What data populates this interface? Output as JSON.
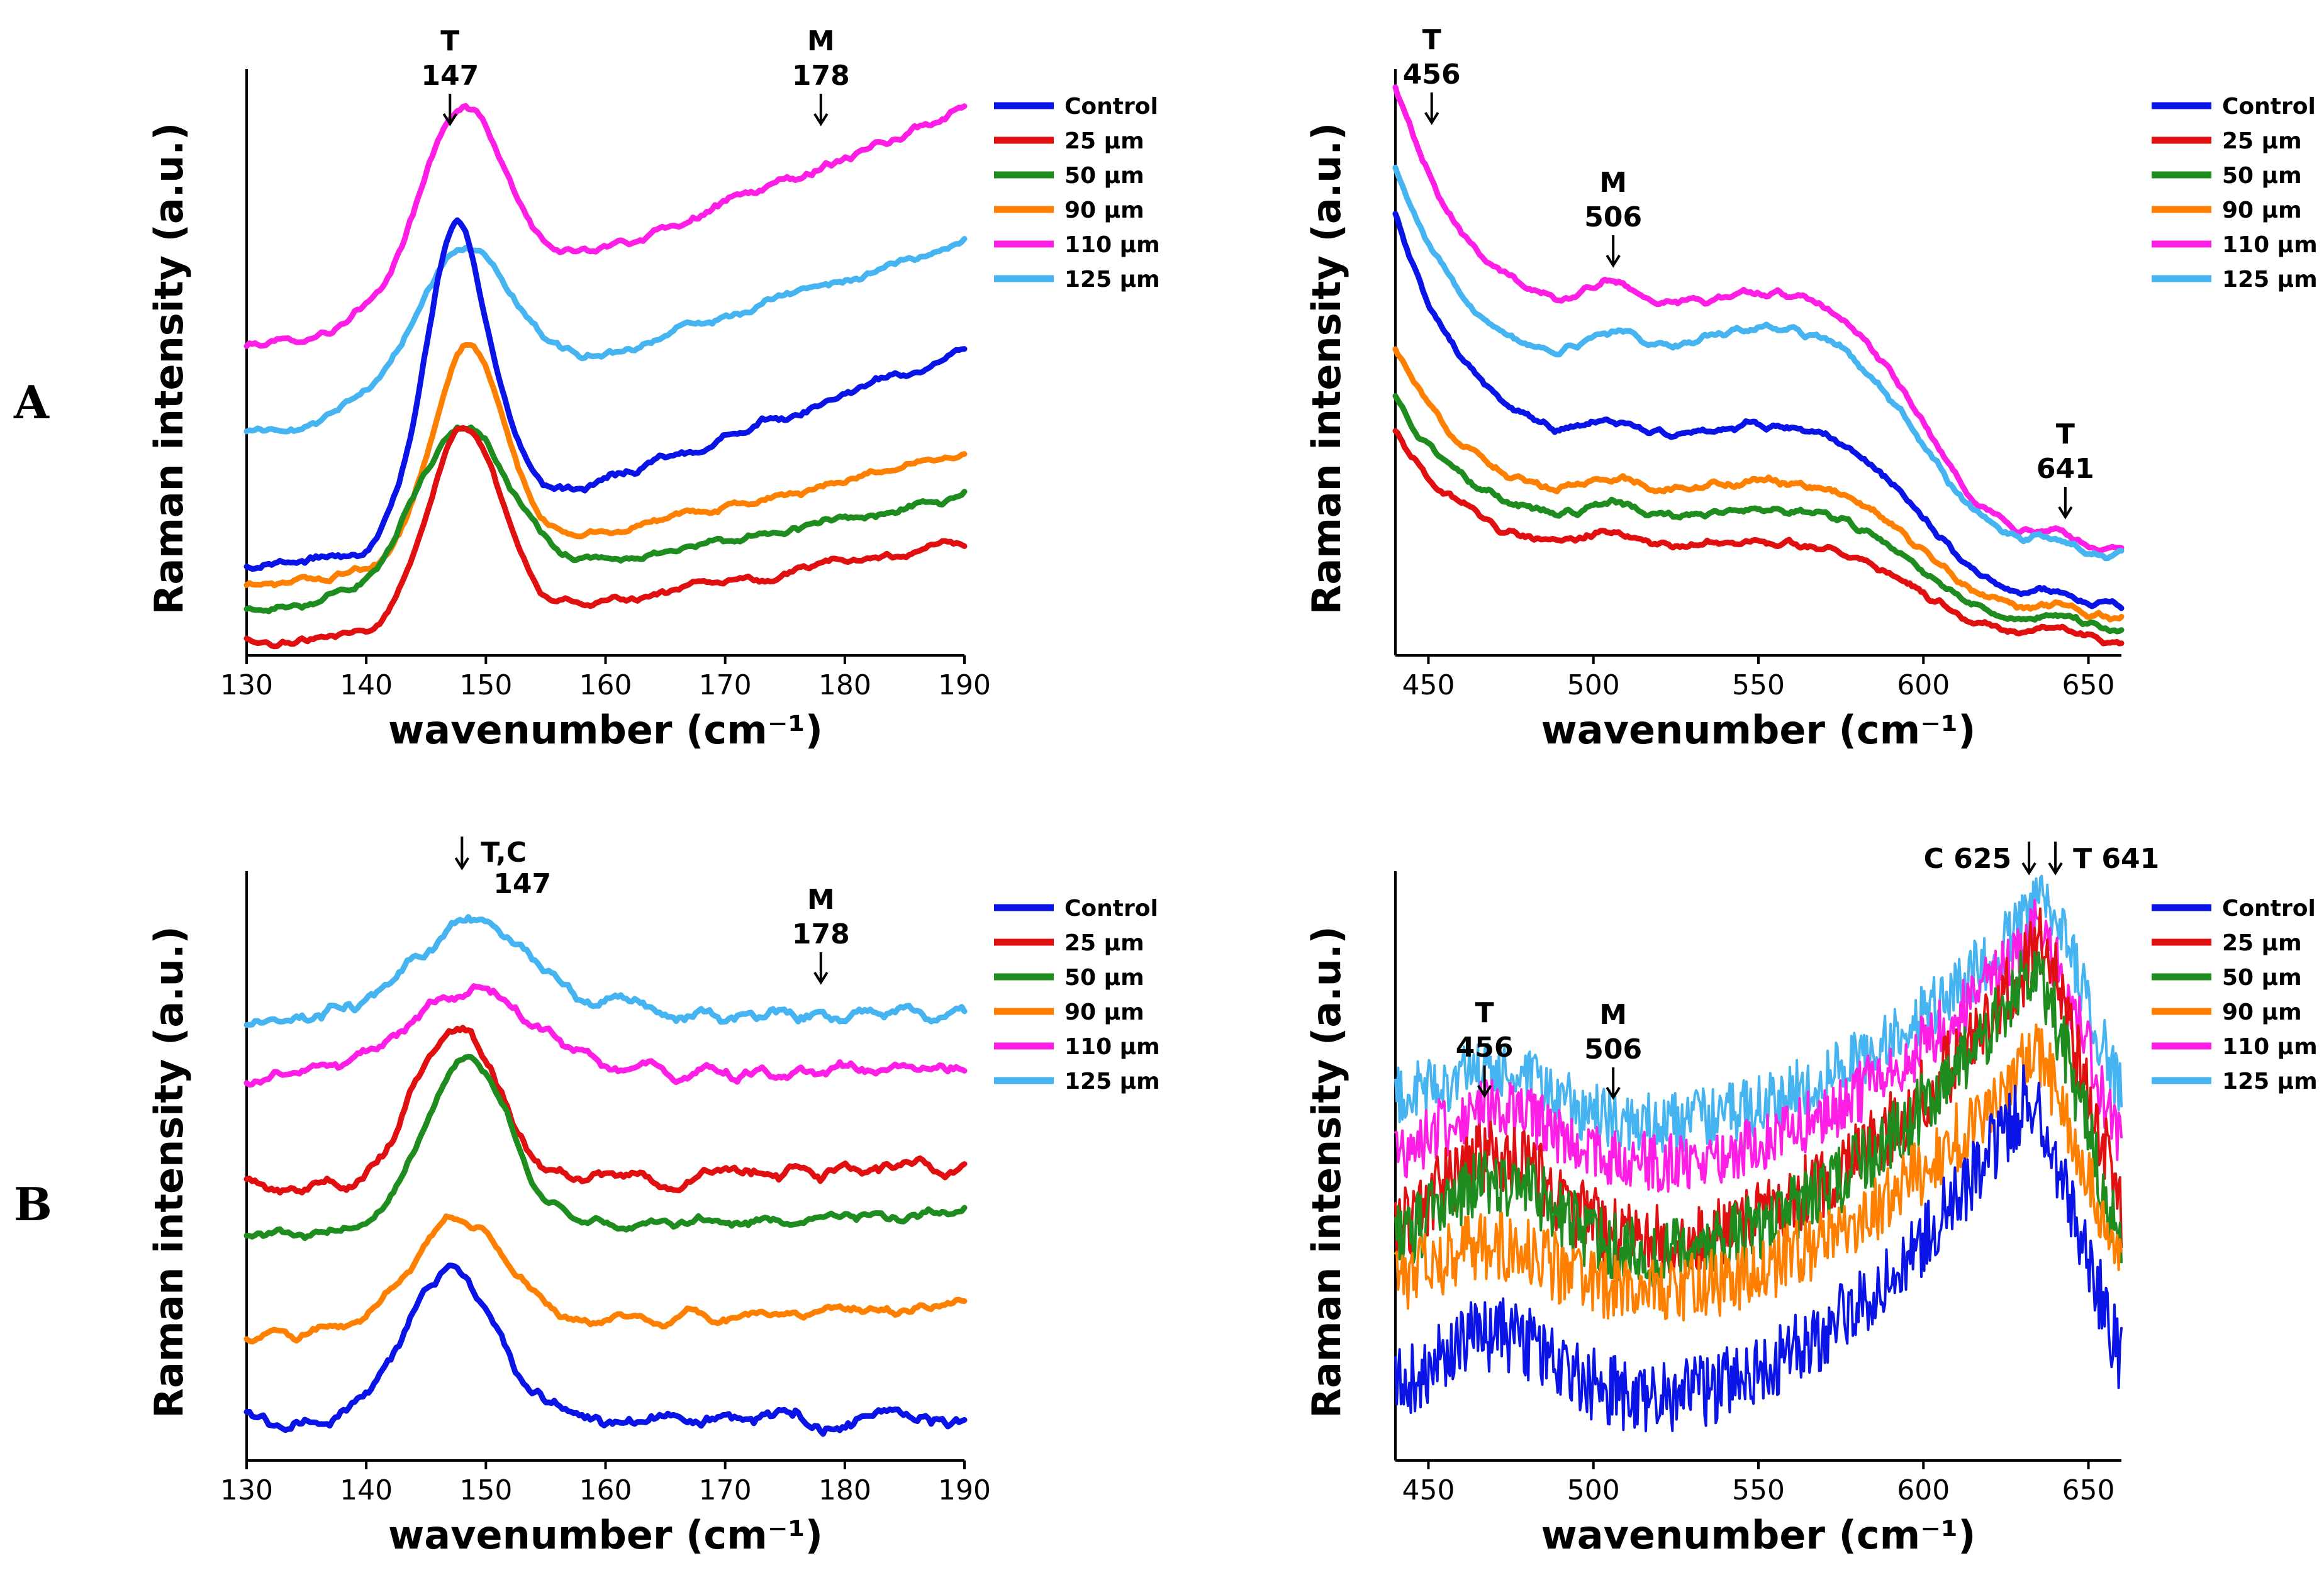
{
  "figure": {
    "row_labels": [
      "A",
      "B"
    ],
    "colors": {
      "Control": "#0a14e6",
      "25 µm": "#e01010",
      "50 µm": "#1e8c1e",
      "90 µm": "#ff8000",
      "110 µm": "#ff1ee6",
      "125 µm": "#46b4f0"
    }
  },
  "chart_data": [
    {
      "type": "line",
      "panel": "A-left",
      "xlabel": "wavenumber (cm⁻¹)",
      "ylabel": "Raman intensity (a.u.)",
      "xlim": [
        130,
        190
      ],
      "xticks": [
        130,
        140,
        150,
        160,
        170,
        180,
        190
      ],
      "tick_labels": [
        "130",
        "140",
        "150",
        "160",
        "170",
        "180",
        "190"
      ],
      "legend": [
        "Control",
        "25 µm",
        "50 µm",
        "90 µm",
        "110 µm",
        "125 µm"
      ],
      "annotations": [
        {
          "lines": [
            "T",
            "147"
          ],
          "x": 147
        },
        {
          "lines": [
            "M",
            "178"
          ],
          "x": 178
        }
      ],
      "series": [
        {
          "name": "110 µm",
          "base": 0.53,
          "end": 0.96,
          "peaks": [
            {
              "x": 148,
              "h": 0.34,
              "w": 3.5
            }
          ],
          "noise": 0.013,
          "style": "smooth"
        },
        {
          "name": "125 µm",
          "base": 0.38,
          "end": 0.72,
          "peaks": [
            {
              "x": 148,
              "h": 0.25,
              "w": 4
            }
          ],
          "noise": 0.012,
          "style": "smooth"
        },
        {
          "name": "Control",
          "base": 0.13,
          "end": 0.52,
          "peaks": [
            {
              "x": 147.3,
              "h": 0.47,
              "w": 2.5
            },
            {
              "x": 150,
              "h": 0.1,
              "w": 3
            }
          ],
          "noise": 0.013,
          "style": "smooth"
        },
        {
          "name": "90 µm",
          "base": 0.1,
          "end": 0.34,
          "peaks": [
            {
              "x": 148.5,
              "h": 0.38,
              "w": 3
            }
          ],
          "noise": 0.011,
          "style": "smooth"
        },
        {
          "name": "50 µm",
          "base": 0.06,
          "end": 0.26,
          "peaks": [
            {
              "x": 148,
              "h": 0.28,
              "w": 4
            }
          ],
          "noise": 0.012,
          "style": "smooth"
        },
        {
          "name": "25 µm",
          "base": 0.0,
          "end": 0.18,
          "peaks": [
            {
              "x": 148.2,
              "h": 0.35,
              "w": 3
            }
          ],
          "noise": 0.011,
          "style": "smooth"
        }
      ]
    },
    {
      "type": "line",
      "panel": "A-right",
      "xlabel": "wavenumber (cm⁻¹)",
      "ylabel": "Raman intensity (a.u.)",
      "xlim": [
        440,
        660
      ],
      "xticks": [
        450,
        500,
        550,
        600,
        650
      ],
      "tick_labels": [
        "450",
        "500",
        "550",
        "600",
        "650"
      ],
      "legend": [
        "Control",
        "25 µm",
        "50 µm",
        "90 µm",
        "110 µm",
        "125 µm"
      ],
      "annotations": [
        {
          "lines": [
            "T",
            "456"
          ],
          "x": 451
        },
        {
          "lines": [
            "M",
            "506"
          ],
          "x": 506
        },
        {
          "lines": [
            "T",
            "641"
          ],
          "x": 643
        }
      ],
      "series": [
        {
          "name": "110 µm",
          "shape": "decay",
          "start": 1.0,
          "mid": 0.56,
          "hump": 0.07,
          "end": 0.16,
          "noise": 0.006
        },
        {
          "name": "125 µm",
          "shape": "decay",
          "start": 0.85,
          "mid": 0.47,
          "hump": 0.1,
          "end": 0.15,
          "noise": 0.006
        },
        {
          "name": "Control",
          "shape": "decay",
          "start": 0.77,
          "mid": 0.33,
          "hump": 0.06,
          "end": 0.06,
          "noise": 0.006
        },
        {
          "name": "90 µm",
          "shape": "decay",
          "start": 0.53,
          "mid": 0.24,
          "hump": 0.05,
          "end": 0.04,
          "noise": 0.006
        },
        {
          "name": "50 µm",
          "shape": "decay",
          "start": 0.44,
          "mid": 0.2,
          "hump": 0.04,
          "end": 0.02,
          "noise": 0.006
        },
        {
          "name": "25 µm",
          "shape": "decay",
          "start": 0.38,
          "mid": 0.15,
          "hump": 0.03,
          "end": 0.0,
          "noise": 0.006
        }
      ]
    },
    {
      "type": "line",
      "panel": "B-left",
      "xlabel": "wavenumber (cm⁻¹)",
      "ylabel": "Raman intensity (a.u.)",
      "xlim": [
        130,
        190
      ],
      "xticks": [
        130,
        140,
        150,
        160,
        170,
        180,
        190
      ],
      "tick_labels": [
        "130",
        "140",
        "150",
        "160",
        "170",
        "180",
        "190"
      ],
      "legend": [
        "Control",
        "25 µm",
        "50 µm",
        "90 µm",
        "110 µm",
        "125 µm"
      ],
      "annotations": [
        {
          "lines": [
            "T,C",
            "147"
          ],
          "x": 148,
          "arrow_left": true
        },
        {
          "lines": [
            "M",
            "178"
          ],
          "x": 178
        }
      ],
      "series": [
        {
          "name": "125 µm",
          "base": 0.76,
          "end": 0.78,
          "peaks": [
            {
              "x": 149,
              "h": 0.17,
              "w": 5
            }
          ],
          "noise": 0.02,
          "style": "smooth"
        },
        {
          "name": "110 µm",
          "base": 0.66,
          "end": 0.67,
          "peaks": [
            {
              "x": 149,
              "h": 0.16,
              "w": 5
            }
          ],
          "noise": 0.018,
          "style": "smooth"
        },
        {
          "name": "25 µm",
          "base": 0.46,
          "end": 0.5,
          "peaks": [
            {
              "x": 147.5,
              "h": 0.28,
              "w": 3.5
            }
          ],
          "noise": 0.02,
          "style": "smooth"
        },
        {
          "name": "50 µm",
          "base": 0.38,
          "end": 0.42,
          "peaks": [
            {
              "x": 148.5,
              "h": 0.3,
              "w": 3.5
            }
          ],
          "noise": 0.015,
          "style": "smooth"
        },
        {
          "name": "90 µm",
          "base": 0.2,
          "end": 0.25,
          "peaks": [
            {
              "x": 148,
              "h": 0.2,
              "w": 4
            }
          ],
          "noise": 0.016,
          "style": "smooth"
        },
        {
          "name": "Control",
          "base": 0.04,
          "end": 0.05,
          "peaks": [
            {
              "x": 147,
              "h": 0.26,
              "w": 4
            }
          ],
          "noise": 0.022,
          "style": "smooth"
        }
      ]
    },
    {
      "type": "line",
      "panel": "B-right",
      "xlabel": "wavenumber (cm⁻¹)",
      "ylabel": "Raman intensity (a.u.)",
      "xlim": [
        440,
        660
      ],
      "xticks": [
        450,
        500,
        550,
        600,
        650
      ],
      "tick_labels": [
        "450",
        "500",
        "550",
        "600",
        "650"
      ],
      "legend": [
        "Control",
        "25 µm",
        "50 µm",
        "90 µm",
        "110 µm",
        "125 µm"
      ],
      "annotations": [
        {
          "lines": [
            "T",
            "456"
          ],
          "x": 467
        },
        {
          "lines": [
            "M",
            "506"
          ],
          "x": 506
        },
        {
          "lines": [
            "C 625"
          ],
          "x": 632,
          "label_side": "left"
        },
        {
          "lines": [
            "T 641"
          ],
          "x": 640,
          "label_side": "right"
        }
      ],
      "series": [
        {
          "name": "125 µm",
          "shape": "rise",
          "start": 0.6,
          "bump": 0.08,
          "low": 0.57,
          "top": 0.98,
          "topx": 637,
          "end": 0.62,
          "noise": 0.025
        },
        {
          "name": "110 µm",
          "shape": "rise",
          "start": 0.5,
          "bump": 0.1,
          "low": 0.5,
          "top": 0.93,
          "topx": 635,
          "end": 0.53,
          "noise": 0.025
        },
        {
          "name": "25 µm",
          "shape": "rise",
          "start": 0.35,
          "bump": 0.16,
          "low": 0.36,
          "top": 0.9,
          "topx": 636,
          "end": 0.42,
          "noise": 0.03
        },
        {
          "name": "50 µm",
          "shape": "rise",
          "start": 0.33,
          "bump": 0.14,
          "low": 0.34,
          "top": 0.86,
          "topx": 634,
          "end": 0.35,
          "noise": 0.028
        },
        {
          "name": "90 µm",
          "shape": "rise",
          "start": 0.28,
          "bump": 0.08,
          "low": 0.27,
          "top": 0.71,
          "topx": 634,
          "end": 0.33,
          "noise": 0.028
        },
        {
          "name": "Control",
          "shape": "rise",
          "start": 0.08,
          "bump": 0.12,
          "low": 0.08,
          "top": 0.63,
          "topx": 632,
          "end": 0.15,
          "noise": 0.03
        }
      ]
    }
  ]
}
